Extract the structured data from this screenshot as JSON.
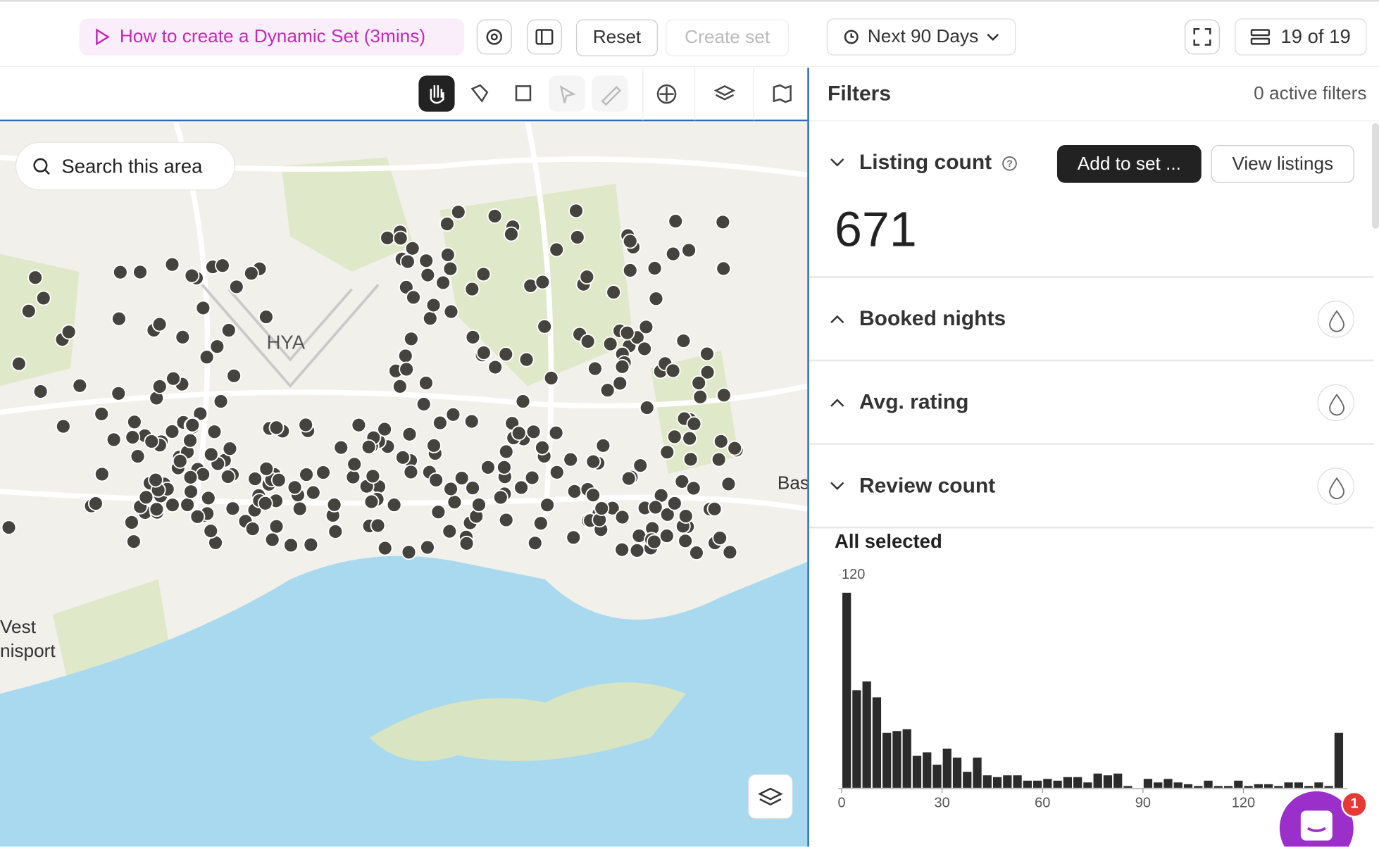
{
  "toolbar": {
    "tutorial": "How to create a Dynamic Set (3mins)",
    "reset": "Reset",
    "create_set": "Create set",
    "date_range": "Next 90 Days",
    "page_count": "19 of 19"
  },
  "map": {
    "search": "Search this area",
    "labels": {
      "airport": "HYA",
      "west": "Vest",
      "dennisport": "nisport",
      "bass": "Bas"
    }
  },
  "filters": {
    "title": "Filters",
    "active": "0 active filters",
    "listing_count": {
      "label": "Listing count",
      "value": 671,
      "add": "Add to set ...",
      "view": "View listings"
    },
    "sections": [
      "Booked nights",
      "Avg. rating",
      "Review count"
    ],
    "review_count": {
      "selection": "All selected",
      "histogram": {
        "type": "histogram",
        "bins": [
          0,
          3,
          6,
          9,
          12,
          15,
          18,
          21,
          24,
          27,
          30,
          33,
          36,
          39,
          42,
          45,
          48,
          51,
          54,
          57,
          60,
          63,
          66,
          69,
          72,
          75,
          78,
          81,
          84,
          87,
          90,
          93,
          96,
          99,
          102,
          105,
          108,
          111,
          114,
          117,
          120,
          123,
          126,
          129,
          132,
          135,
          138,
          141,
          144,
          147,
          150
        ],
        "values": [
          110,
          55,
          60,
          51,
          31,
          32,
          33,
          18,
          20,
          13,
          22,
          17,
          9,
          17,
          7,
          6,
          7,
          7,
          4,
          4,
          5,
          4,
          6,
          6,
          3,
          8,
          7,
          8,
          1,
          0,
          5,
          3,
          5,
          3,
          2,
          1,
          4,
          1,
          1,
          4,
          1,
          2,
          2,
          1,
          3,
          3,
          1,
          3,
          1,
          31
        ],
        "color": "#2b2b2b",
        "xlim": [
          0,
          150
        ],
        "ylim": [
          0,
          120
        ],
        "xticks": [
          0,
          30,
          60,
          90,
          120
        ],
        "yticks": [
          120
        ]
      }
    }
  },
  "chat": {
    "badge": 1
  }
}
